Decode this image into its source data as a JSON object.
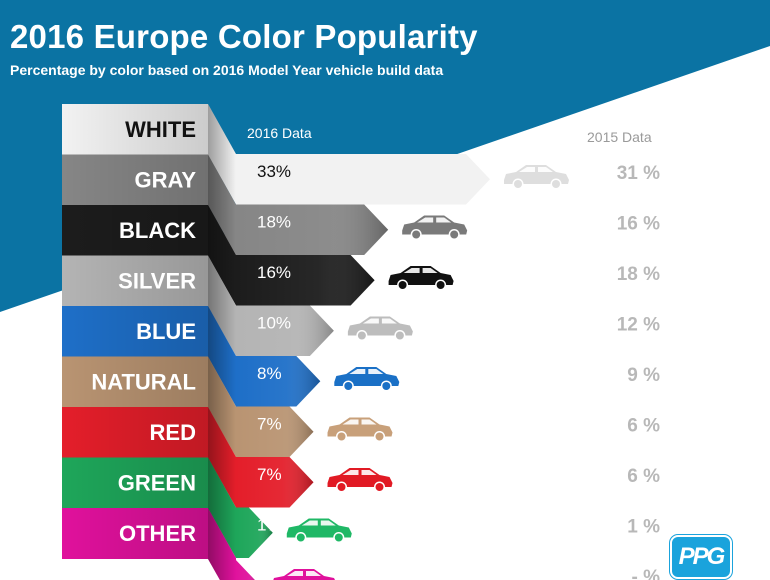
{
  "title": "2016 Europe Color Popularity",
  "subtitle": "Percentage by color based on 2016 Model Year vehicle build data",
  "logo_text": "PPG",
  "colors": {
    "banner": "#0b73a3"
  },
  "chart_data": {
    "type": "bar",
    "title": "2016 Europe Color Popularity",
    "subtitle": "Percentage by color based on 2016 Model Year vehicle build data",
    "categories": [
      "WHITE",
      "GRAY",
      "BLACK",
      "SILVER",
      "BLUE",
      "NATURAL",
      "RED",
      "GREEN",
      "OTHER"
    ],
    "series": [
      {
        "name": "2016 Data",
        "values": [
          33,
          18,
          16,
          10,
          8,
          7,
          7,
          1,
          null
        ],
        "labels": [
          "33%",
          "18%",
          "16%",
          "10%",
          "8%",
          "7%",
          "7%",
          "1%",
          "-"
        ]
      },
      {
        "name": "2015 Data",
        "values": [
          31,
          16,
          18,
          12,
          9,
          6,
          6,
          1,
          null
        ],
        "labels": [
          "31 %",
          "16 %",
          "18 %",
          "12 %",
          "9 %",
          "6 %",
          "6 %",
          "1 %",
          "- %"
        ]
      }
    ],
    "colors": [
      "#f2f2f2",
      "#868686",
      "#1c1c1c",
      "#b4b4b4",
      "#1e6fc8",
      "#b99472",
      "#e41e2a",
      "#1ea65a",
      "#e0119c"
    ],
    "car_colors": [
      "#dedede",
      "#7a7a7a",
      "#111111",
      "#bdbdbd",
      "#1a70c6",
      "#c8a07a",
      "#e11a24",
      "#1fb866",
      "#e0119c"
    ],
    "label_colors": [
      "#111111",
      "#ffffff",
      "#ffffff",
      "#ffffff",
      "#ffffff",
      "#ffffff",
      "#ffffff",
      "#ffffff",
      "#ffffff"
    ],
    "value_colors": [
      "#111111",
      "#ffffff",
      "#ffffff",
      "#ffffff",
      "#ffffff",
      "#ffffff",
      "#ffffff",
      "#ffffff",
      "#ffffff"
    ]
  }
}
